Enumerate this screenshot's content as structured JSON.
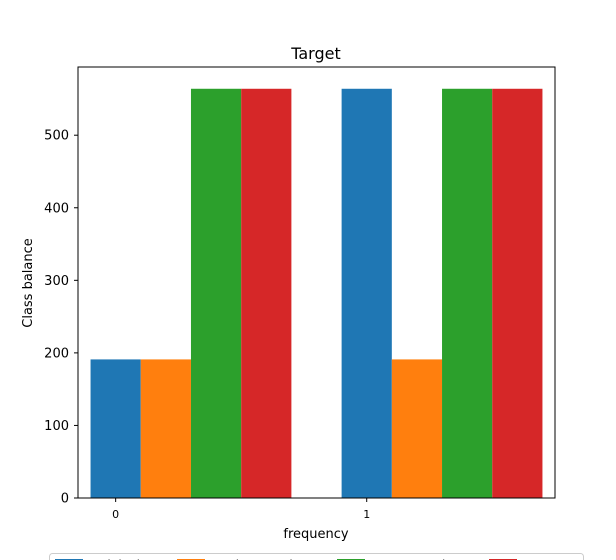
{
  "chart_data": {
    "type": "bar",
    "title": "Target",
    "xlabel": "frequency",
    "ylabel": "Class balance",
    "categories": [
      "0",
      "1"
    ],
    "series": [
      {
        "name": "Original",
        "values": [
          191,
          564
        ],
        "color": "#1f77b4"
      },
      {
        "name": "Under Sampl...",
        "values": [
          191,
          191
        ],
        "color": "#ff7f0e"
      },
      {
        "name": "Over Sampl...",
        "values": [
          564,
          564
        ],
        "color": "#2ca02c"
      },
      {
        "name": "SMOTE",
        "values": [
          564,
          564
        ],
        "color": "#d62728"
      }
    ],
    "ylim": [
      0,
      594
    ],
    "yticks": [
      0,
      100,
      200,
      300,
      400,
      500
    ],
    "grid": false,
    "legend_position": "bottom, below plot (partially cut off)"
  }
}
